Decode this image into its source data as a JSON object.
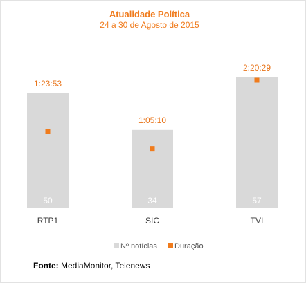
{
  "chart_data": {
    "type": "bar",
    "title": "Atualidade Política",
    "subtitle": "24 a 30 de Agosto de 2015",
    "categories": [
      "RTP1",
      "SIC",
      "TVI"
    ],
    "series": [
      {
        "name": "Nº notícias",
        "type": "bar",
        "values": [
          50,
          34,
          57
        ],
        "color": "#d9d9d9"
      },
      {
        "name": "Duração",
        "type": "marker",
        "values": [
          "1:23:53",
          "1:05:10",
          "2:20:29"
        ],
        "values_seconds": [
          5033,
          3910,
          8429
        ],
        "color": "#f07b1c"
      }
    ],
    "legend": [
      "Nº notícias",
      "Duração"
    ],
    "legend_position": "bottom-right",
    "grid": false
  },
  "source": {
    "label": "Fonte:",
    "text": "MediaMonitor, Telenews"
  }
}
